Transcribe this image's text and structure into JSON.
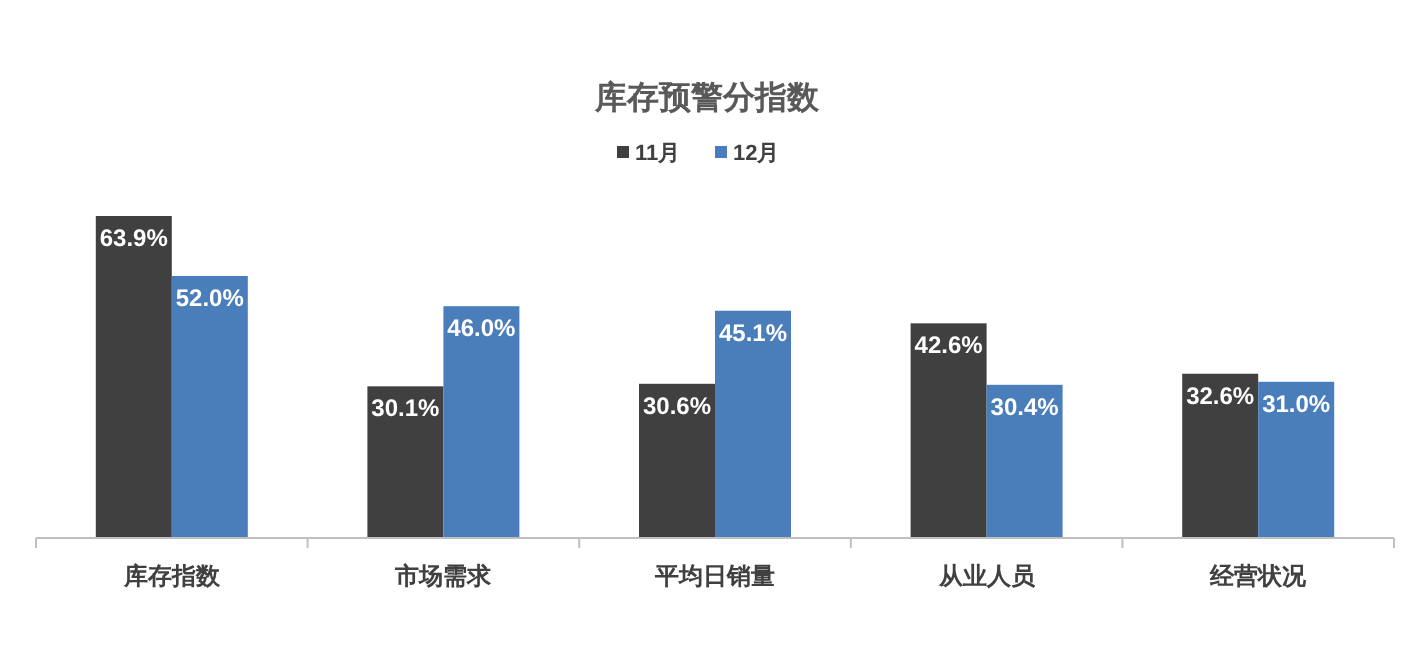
{
  "chart_data": {
    "type": "bar",
    "title": "库存预警分指数",
    "categories": [
      "库存指数",
      "市场需求",
      "平均日销量",
      "从业人员",
      "经营状况"
    ],
    "series": [
      {
        "name": "11月",
        "color": "#404040",
        "values": [
          63.9,
          30.1,
          30.6,
          42.6,
          32.6
        ],
        "value_labels": [
          "63.9%",
          "30.1%",
          "30.6%",
          "42.6%",
          "32.6%"
        ]
      },
      {
        "name": "12月",
        "color": "#4a7ebb",
        "values": [
          52.0,
          46.0,
          45.1,
          30.4,
          31.0
        ],
        "value_labels": [
          "52.0%",
          "46.0%",
          "45.1%",
          "30.4%",
          "31.0%"
        ]
      }
    ],
    "legend": "top"
  }
}
